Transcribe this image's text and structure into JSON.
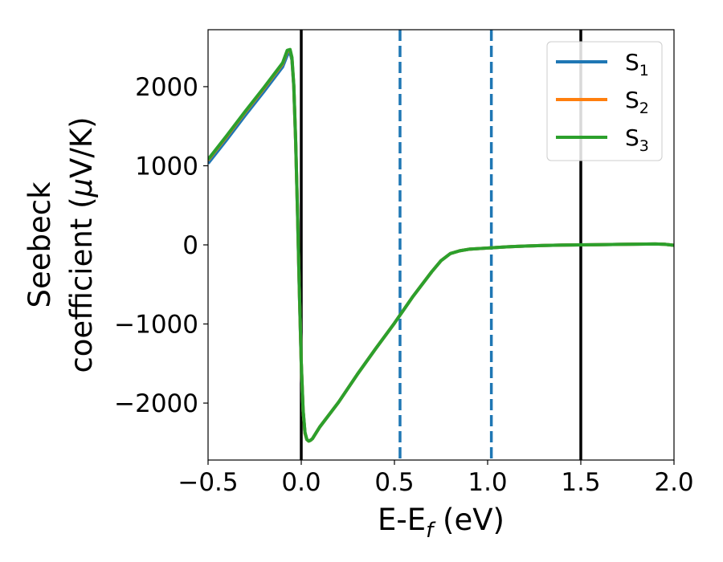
{
  "chart_data": {
    "type": "line",
    "xlabel_main": "E-E",
    "xlabel_sub": "f",
    "xlabel_unit": " (eV)",
    "ylabel_line1": "Seebeck",
    "ylabel_line2_prefix": "coefficient  (",
    "ylabel_mu": "μ",
    "ylabel_line2_suffix": "V/K)",
    "xlim": [
      -0.5,
      2.0
    ],
    "ylim": [
      -2720,
      2720
    ],
    "xticks": [
      -0.5,
      0.0,
      0.5,
      1.0,
      1.5,
      2.0
    ],
    "xtick_labels": [
      "−0.5",
      "0.0",
      "0.5",
      "1.0",
      "1.5",
      "2.0"
    ],
    "yticks": [
      -2000,
      -1000,
      0,
      1000,
      2000
    ],
    "ytick_labels": [
      "−2000",
      "−1000",
      "0",
      "1000",
      "2000"
    ],
    "grid": false,
    "legend_position": "top-right",
    "vlines_solid": [
      0.0,
      1.5
    ],
    "vlines_dashed": [
      0.53,
      1.02
    ],
    "series": [
      {
        "name_main": "S",
        "name_sub": "1",
        "color": "#1f77b4",
        "x": [
          -0.5,
          -0.4,
          -0.3,
          -0.2,
          -0.1,
          -0.075,
          -0.06,
          -0.05,
          -0.04,
          -0.03,
          -0.02,
          -0.01,
          0.0,
          0.01,
          0.02,
          0.03,
          0.04,
          0.05,
          0.06,
          0.1,
          0.2,
          0.3,
          0.4,
          0.5,
          0.6,
          0.7,
          0.75,
          0.8,
          0.85,
          0.9,
          1.0,
          1.1,
          1.2,
          1.3,
          1.4,
          1.5,
          1.6,
          1.7,
          1.8,
          1.9,
          1.95,
          2.0
        ],
        "y": [
          1030,
          1330,
          1640,
          1940,
          2250,
          2400,
          2430,
          2340,
          2000,
          1300,
          400,
          -600,
          -1500,
          -2100,
          -2380,
          -2460,
          -2480,
          -2470,
          -2450,
          -2300,
          -1990,
          -1640,
          -1310,
          -990,
          -650,
          -340,
          -200,
          -110,
          -75,
          -55,
          -40,
          -25,
          -15,
          -8,
          -3,
          0,
          3,
          6,
          9,
          12,
          8,
          -5
        ]
      },
      {
        "name_main": "S",
        "name_sub": "2",
        "color": "#ff7f0e",
        "x": [
          -0.5,
          -0.4,
          -0.3,
          -0.2,
          -0.1,
          -0.075,
          -0.06,
          -0.05,
          -0.04,
          -0.03,
          -0.02,
          -0.01,
          0.0,
          0.01,
          0.02,
          0.03,
          0.04,
          0.05,
          0.06,
          0.1,
          0.2,
          0.3,
          0.4,
          0.5,
          0.6,
          0.7,
          0.75,
          0.8,
          0.85,
          0.9,
          1.0,
          1.1,
          1.2,
          1.3,
          1.4,
          1.5,
          1.6,
          1.7,
          1.8,
          1.9,
          1.95,
          2.0
        ],
        "y": [
          1070,
          1370,
          1680,
          1980,
          2290,
          2450,
          2460,
          2360,
          2010,
          1310,
          410,
          -590,
          -1490,
          -2100,
          -2380,
          -2460,
          -2480,
          -2470,
          -2450,
          -2300,
          -1990,
          -1640,
          -1310,
          -990,
          -650,
          -340,
          -200,
          -110,
          -75,
          -55,
          -40,
          -25,
          -15,
          -8,
          -3,
          0,
          3,
          6,
          9,
          12,
          8,
          -5
        ]
      },
      {
        "name_main": "S",
        "name_sub": "3",
        "color": "#2ca02c",
        "x": [
          -0.5,
          -0.4,
          -0.3,
          -0.2,
          -0.1,
          -0.075,
          -0.06,
          -0.05,
          -0.04,
          -0.03,
          -0.02,
          -0.01,
          0.0,
          0.01,
          0.02,
          0.03,
          0.04,
          0.05,
          0.06,
          0.1,
          0.2,
          0.3,
          0.4,
          0.5,
          0.6,
          0.7,
          0.75,
          0.8,
          0.85,
          0.9,
          1.0,
          1.1,
          1.2,
          1.3,
          1.4,
          1.5,
          1.6,
          1.7,
          1.8,
          1.9,
          1.95,
          2.0
        ],
        "y": [
          1080,
          1380,
          1690,
          1990,
          2300,
          2460,
          2470,
          2370,
          2020,
          1320,
          420,
          -580,
          -1480,
          -2090,
          -2370,
          -2460,
          -2480,
          -2470,
          -2450,
          -2300,
          -1990,
          -1640,
          -1310,
          -990,
          -650,
          -340,
          -200,
          -110,
          -75,
          -55,
          -40,
          -25,
          -15,
          -8,
          -3,
          0,
          3,
          6,
          9,
          12,
          8,
          -5
        ]
      }
    ]
  }
}
